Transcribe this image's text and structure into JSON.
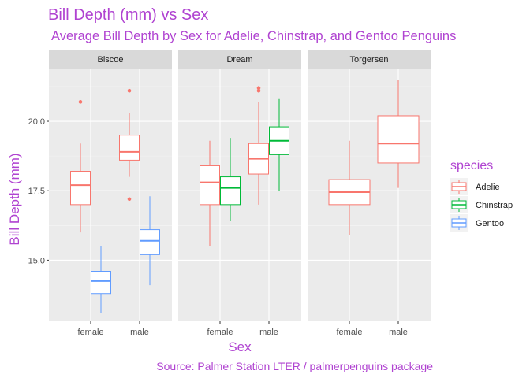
{
  "chart_data": {
    "type": "boxplot",
    "title": "Bill Depth (mm) vs Sex",
    "subtitle": "Average Bill Depth by Sex for Adelie, Chinstrap, and Gentoo Penguins",
    "xlabel": "Sex",
    "ylabel": "Bill Depth (mm)",
    "caption": "Source: Palmer Station LTER / palmerpenguins package",
    "ylim": [
      12.8,
      21.9
    ],
    "y_ticks": [
      15.0,
      17.5,
      20.0
    ],
    "y_tick_labels": [
      "15.0",
      "17.5",
      "20.0"
    ],
    "categories": [
      "female",
      "male"
    ],
    "legend": {
      "title": "species",
      "position": "right",
      "entries": [
        "Adelie",
        "Chinstrap",
        "Gentoo"
      ]
    },
    "colors": {
      "Adelie": "#f8766d",
      "Chinstrap": "#00ba38",
      "Gentoo": "#619cff"
    },
    "facets": [
      {
        "name": "Biscoe",
        "boxes": [
          {
            "sex": "female",
            "species": "Adelie",
            "min": 16.0,
            "q1": 17.0,
            "median": 17.7,
            "q3": 18.2,
            "max": 19.2,
            "outliers": [
              20.7
            ]
          },
          {
            "sex": "female",
            "species": "Gentoo",
            "min": 13.1,
            "q1": 13.8,
            "median": 14.25,
            "q3": 14.6,
            "max": 15.5,
            "outliers": []
          },
          {
            "sex": "male",
            "species": "Adelie",
            "min": 18.0,
            "q1": 18.6,
            "median": 18.9,
            "q3": 19.5,
            "max": 20.3,
            "outliers": [
              21.1,
              17.2
            ]
          },
          {
            "sex": "male",
            "species": "Gentoo",
            "min": 14.1,
            "q1": 15.2,
            "median": 15.7,
            "q3": 16.1,
            "max": 17.3,
            "outliers": []
          }
        ]
      },
      {
        "name": "Dream",
        "boxes": [
          {
            "sex": "female",
            "species": "Adelie",
            "min": 15.5,
            "q1": 17.0,
            "median": 17.8,
            "q3": 18.4,
            "max": 19.3,
            "outliers": []
          },
          {
            "sex": "female",
            "species": "Chinstrap",
            "min": 16.4,
            "q1": 17.0,
            "median": 17.6,
            "q3": 18.0,
            "max": 19.4,
            "outliers": []
          },
          {
            "sex": "male",
            "species": "Adelie",
            "min": 17.0,
            "q1": 18.1,
            "median": 18.65,
            "q3": 19.2,
            "max": 20.7,
            "outliers": [
              21.2,
              21.1
            ]
          },
          {
            "sex": "male",
            "species": "Chinstrap",
            "min": 17.5,
            "q1": 18.8,
            "median": 19.3,
            "q3": 19.8,
            "max": 20.8,
            "outliers": []
          }
        ]
      },
      {
        "name": "Torgersen",
        "boxes": [
          {
            "sex": "female",
            "species": "Adelie",
            "min": 15.9,
            "q1": 17.0,
            "median": 17.45,
            "q3": 17.9,
            "max": 19.3,
            "outliers": []
          },
          {
            "sex": "male",
            "species": "Adelie",
            "min": 17.6,
            "q1": 18.5,
            "median": 19.2,
            "q3": 20.2,
            "max": 21.5,
            "outliers": []
          }
        ]
      }
    ]
  }
}
